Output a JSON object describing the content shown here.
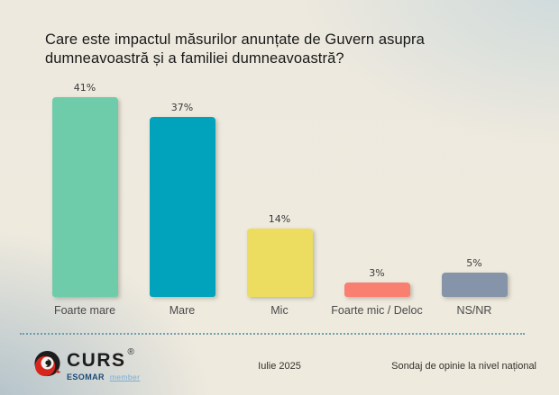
{
  "title": "Care este impactul măsurilor anunțate de Guvern asupra dumneavoastră și a familiei dumneavoastră?",
  "chart_data": {
    "type": "bar",
    "title": "Care este impactul măsurilor anunțate de Guvern asupra dumneavoastră și a familiei dumneavoastră?",
    "categories": [
      "Foarte mare",
      "Mare",
      "Mic",
      "Foarte mic / Deloc",
      "NS/NR"
    ],
    "values": [
      41,
      37,
      14,
      3,
      5
    ],
    "value_labels": [
      "41%",
      "37%",
      "14%",
      "3%",
      "5%"
    ],
    "colors": [
      "#6FCCAB",
      "#00A3BB",
      "#ECDD60",
      "#F97F70",
      "#8694A9"
    ],
    "xlabel": "",
    "ylabel": "",
    "ylim": [
      0,
      45
    ],
    "grid": false,
    "legend": false,
    "data_labels_position": "above-bar"
  },
  "footer": {
    "logo": {
      "brand": "CURS",
      "registered": "®",
      "org": "ESOMAR",
      "membership": "member"
    },
    "date": "Iulie 2025",
    "note": "Sondaj de opinie la nivel național"
  },
  "style_colors": {
    "background_base": "#EDE9DE",
    "background_tint_top_right": "#CBD8DB",
    "background_tint_bottom_left": "#A8BBC6",
    "divider_dotted": "#5B93A8",
    "title_text": "#181818",
    "label_text": "#4A4A4A",
    "logo_red": "#D6271E",
    "logo_black": "#1D1D1D",
    "esomar_blue": "#1A4A77",
    "member_blue": "#79AED2"
  }
}
